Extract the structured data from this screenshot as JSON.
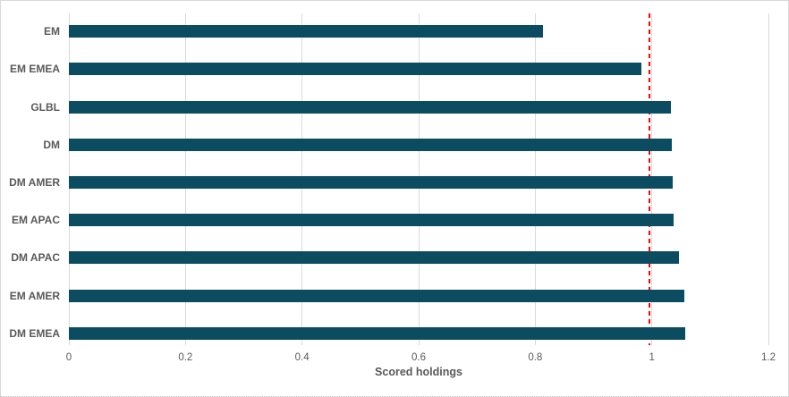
{
  "chart_data": {
    "type": "bar",
    "orientation": "horizontal",
    "title": "",
    "xlabel": "Scored holdings",
    "ylabel": "",
    "categories": [
      "EM",
      "EM EMEA",
      "GLBL",
      "DM",
      "DM AMER",
      "EM APAC",
      "DM APAC",
      "EM AMER",
      "DM EMEA"
    ],
    "values": [
      0.813,
      0.982,
      1.033,
      1.034,
      1.036,
      1.038,
      1.047,
      1.055,
      1.058
    ],
    "xlim": [
      0,
      1.2
    ],
    "xticks": [
      0,
      0.2,
      0.4,
      0.6,
      0.8,
      1,
      1.2
    ],
    "xtick_labels": [
      "0",
      "0.2",
      "0.4",
      "0.6",
      "0.8",
      "1",
      "1.2"
    ],
    "grid": "vertical",
    "legend": "none",
    "bar_color": "#0b4c61",
    "gridline_color": "#d9d9d9",
    "text_color": "#595959",
    "reference_line": {
      "value": 0.996,
      "color": "#ff0000",
      "style": "dashed"
    }
  }
}
